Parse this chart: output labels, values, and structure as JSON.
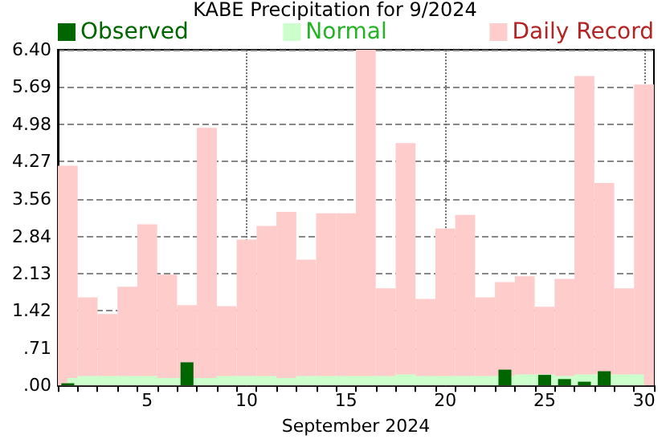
{
  "chart_data": {
    "type": "bar",
    "title": "KABE Precipitation for 9/2024",
    "xlabel": "September 2024",
    "categories": [
      null,
      null,
      null,
      null,
      "5",
      null,
      null,
      null,
      null,
      "10",
      null,
      null,
      null,
      null,
      "15",
      null,
      null,
      null,
      null,
      "20",
      null,
      null,
      null,
      null,
      "25",
      null,
      null,
      null,
      null,
      "30"
    ],
    "series": [
      {
        "name": "Daily Record",
        "color": "#ffcccc",
        "values": [
          4.19,
          1.68,
          1.36,
          1.88,
          3.07,
          2.11,
          1.53,
          4.91,
          1.51,
          2.78,
          3.04,
          3.31,
          2.4,
          3.28,
          3.28,
          6.4,
          1.85,
          4.62,
          1.65,
          2.99,
          3.25,
          1.68,
          1.97,
          2.08,
          1.5,
          2.03,
          5.9,
          3.86,
          1.85,
          5.74
        ]
      },
      {
        "name": "Normal",
        "type": "area",
        "color": "#ccffcc",
        "values": [
          0.14,
          0.18,
          0.18,
          0.18,
          0.18,
          0.14,
          0.14,
          0.14,
          0.18,
          0.18,
          0.18,
          0.14,
          0.18,
          0.18,
          0.18,
          0.18,
          0.18,
          0.21,
          0.18,
          0.18,
          0.18,
          0.18,
          0.18,
          0.21,
          0.21,
          0.18,
          0.21,
          0.21,
          0.21,
          0.21
        ]
      },
      {
        "name": "Observed",
        "color": "#006600",
        "values": [
          0.04,
          0,
          0,
          0,
          0,
          0,
          0.44,
          0,
          0,
          0,
          0,
          0,
          0,
          0,
          0,
          0,
          0,
          0,
          0,
          0,
          0,
          0,
          0.3,
          0,
          0.2,
          0.12,
          0.07,
          0.27,
          0,
          0
        ]
      }
    ],
    "ylim": [
      0,
      6.4
    ],
    "yticks": [
      {
        "value": 0,
        "label": ".00"
      },
      {
        "value": 0.71,
        "label": ".71"
      },
      1.42,
      2.13,
      2.84,
      3.56,
      4.27,
      4.98,
      5.69,
      {
        "value": 6.4,
        "label": "6.40"
      }
    ],
    "grid": "y",
    "legend": "top",
    "ref_lines": [
      {
        "axis": "x",
        "value": "10",
        "label": null,
        "line_style": "dotted"
      },
      {
        "axis": "x",
        "value": "20",
        "label": null,
        "line_style": "dotted"
      },
      {
        "axis": "x",
        "value": "30",
        "label": null,
        "line_style": "dotted"
      }
    ]
  }
}
